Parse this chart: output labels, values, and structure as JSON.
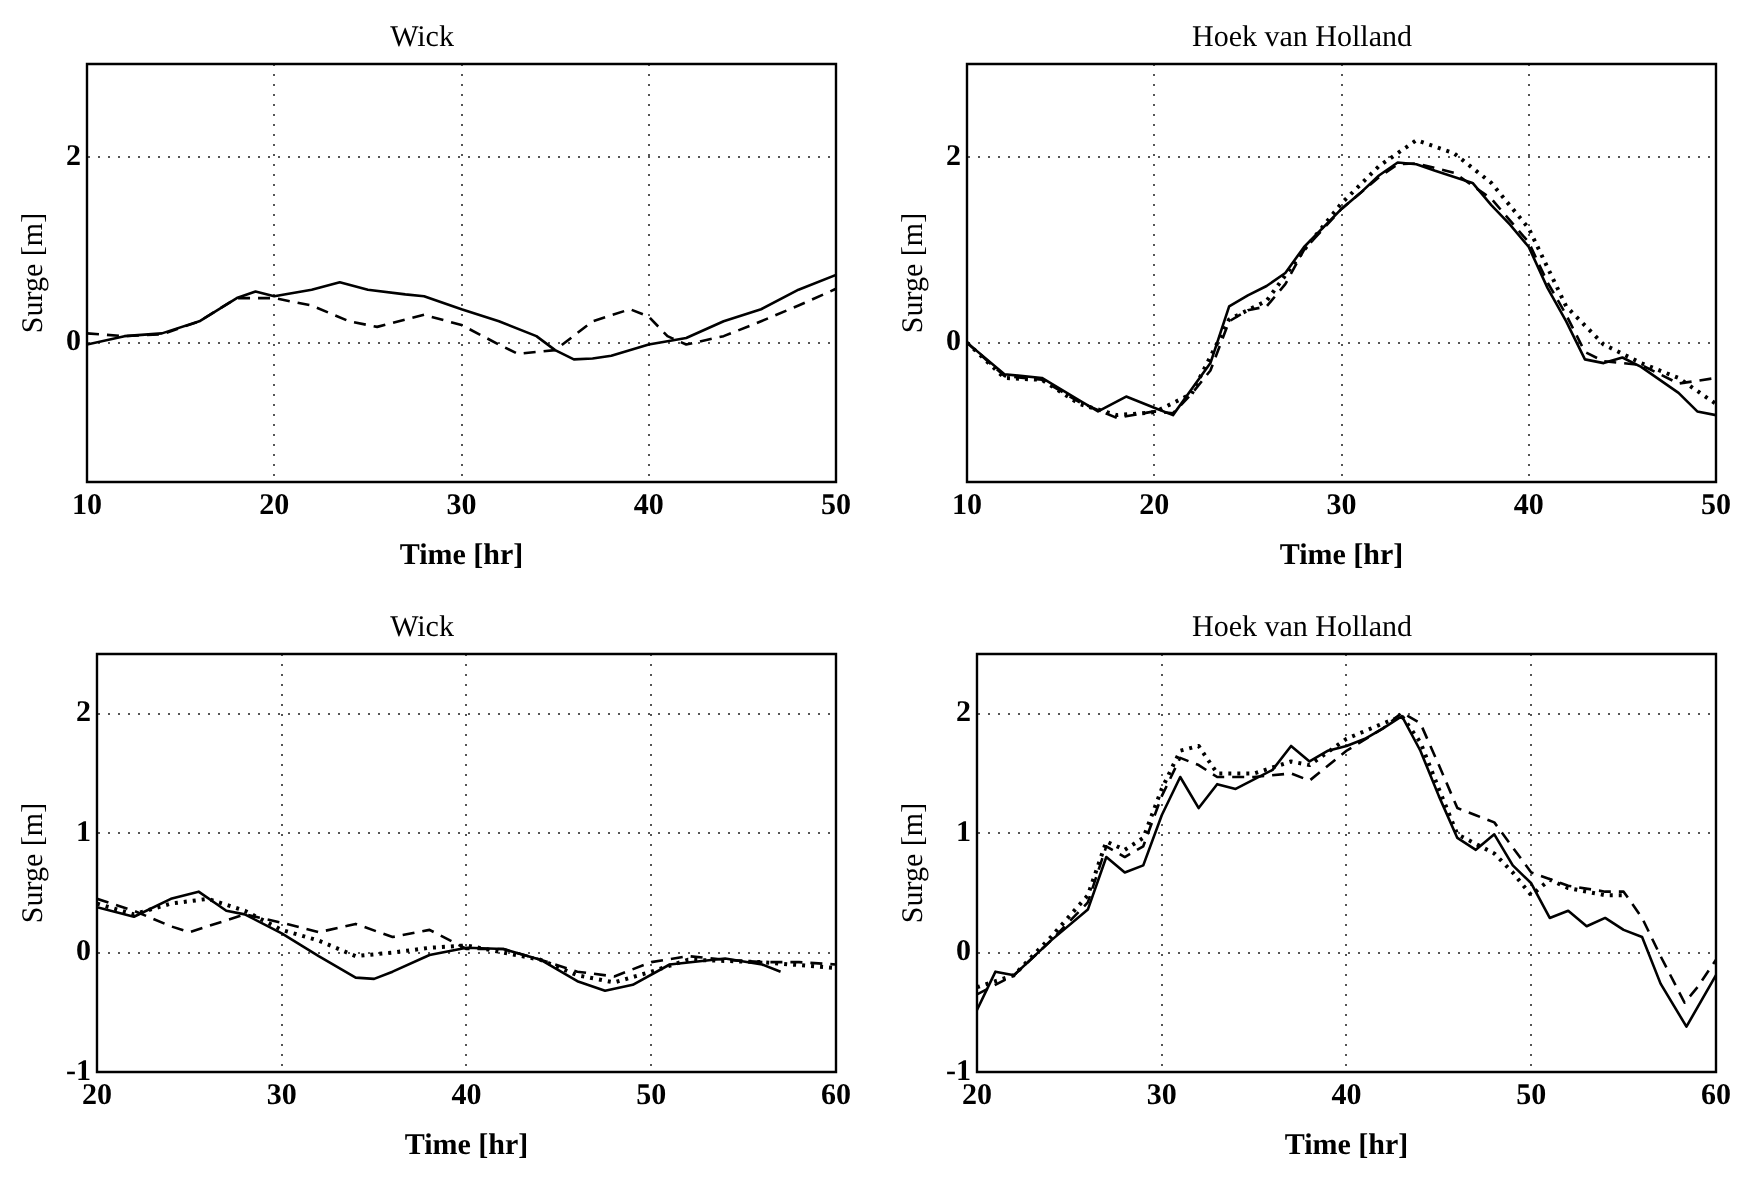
{
  "chart_data": [
    {
      "type": "line",
      "title": "Wick",
      "xlabel": "Time [hr]",
      "ylabel": "Surge [m]",
      "xlim": [
        10,
        50
      ],
      "xticks": [
        10,
        20,
        30,
        40,
        50
      ],
      "ylim": [
        -1.5,
        3
      ],
      "yticks": [
        0,
        2
      ],
      "grid": true,
      "series": [
        {
          "color": "#000000",
          "line_style": "solid",
          "x": [
            10,
            12,
            14,
            16,
            18,
            19,
            20,
            22,
            23.5,
            25,
            27,
            28,
            30,
            32,
            34,
            35,
            36,
            37,
            38,
            40,
            42,
            44,
            46,
            48,
            50
          ],
          "values": [
            -0.02,
            0.07,
            0.1,
            0.23,
            0.48,
            0.55,
            0.5,
            0.57,
            0.65,
            0.57,
            0.52,
            0.5,
            0.36,
            0.23,
            0.07,
            -0.08,
            -0.18,
            -0.17,
            -0.14,
            -0.02,
            0.05,
            0.23,
            0.36,
            0.57,
            0.73
          ]
        },
        {
          "color": "#000000",
          "line_style": "dashed",
          "x": [
            10,
            12,
            14,
            16,
            18,
            20,
            22,
            24,
            25.5,
            28,
            30,
            32,
            33,
            35,
            37,
            39,
            40,
            41,
            42,
            44,
            46,
            48,
            50
          ],
          "values": [
            0.1,
            0.07,
            0.09,
            0.23,
            0.48,
            0.48,
            0.4,
            0.23,
            0.17,
            0.3,
            0.19,
            -0.02,
            -0.12,
            -0.08,
            0.23,
            0.36,
            0.28,
            0.07,
            -0.02,
            0.07,
            0.23,
            0.4,
            0.58
          ]
        }
      ]
    },
    {
      "type": "line",
      "title": "Hoek van Holland",
      "xlabel": "Time [hr]",
      "ylabel": "Surge [m]",
      "xlim": [
        10,
        50
      ],
      "xticks": [
        10,
        20,
        30,
        40,
        50
      ],
      "ylim": [
        -1.5,
        3
      ],
      "yticks": [
        0,
        2
      ],
      "grid": true,
      "series": [
        {
          "color": "#000000",
          "line_style": "solid",
          "x": [
            10,
            12,
            14,
            16,
            17,
            18.5,
            20,
            21,
            22,
            23,
            24,
            25,
            26,
            27,
            28,
            30,
            31,
            32,
            33,
            34,
            35,
            37,
            38,
            39,
            40,
            41,
            42,
            43,
            44,
            45,
            46,
            48,
            49,
            50
          ],
          "values": [
            0,
            -0.34,
            -0.38,
            -0.62,
            -0.74,
            -0.58,
            -0.7,
            -0.78,
            -0.5,
            -0.22,
            0.39,
            0.51,
            0.61,
            0.75,
            1.03,
            1.44,
            1.61,
            1.8,
            1.94,
            1.92,
            1.85,
            1.72,
            1.48,
            1.27,
            1.03,
            0.59,
            0.23,
            -0.18,
            -0.22,
            -0.16,
            -0.26,
            -0.54,
            -0.74,
            -0.78
          ]
        },
        {
          "color": "#000000",
          "line_style": "dashed",
          "x": [
            10,
            12,
            14,
            16,
            18,
            20,
            21,
            22,
            23,
            24,
            25,
            26,
            27,
            28,
            30,
            32,
            33,
            34,
            36,
            38,
            40,
            41,
            42,
            43,
            44,
            46,
            48,
            50
          ],
          "values": [
            0,
            -0.36,
            -0.4,
            -0.64,
            -0.81,
            -0.74,
            -0.76,
            -0.55,
            -0.3,
            0.23,
            0.35,
            0.39,
            0.63,
            1.0,
            1.44,
            1.78,
            1.92,
            1.93,
            1.83,
            1.55,
            1.08,
            0.65,
            0.3,
            -0.1,
            -0.2,
            -0.24,
            -0.44,
            -0.38
          ]
        },
        {
          "color": "#000000",
          "line_style": "dotted",
          "x": [
            10,
            12,
            14,
            16,
            18,
            20,
            22,
            24,
            26,
            28,
            30,
            32,
            34,
            36,
            38,
            40,
            42,
            44,
            46,
            48,
            50
          ],
          "values": [
            0,
            -0.38,
            -0.4,
            -0.66,
            -0.78,
            -0.75,
            -0.55,
            0.25,
            0.45,
            1.0,
            1.5,
            1.9,
            2.18,
            2.04,
            1.72,
            1.23,
            0.39,
            -0.02,
            -0.22,
            -0.38,
            -0.66
          ]
        }
      ]
    },
    {
      "type": "line",
      "title": "Wick",
      "xlabel": "Time [hr]",
      "ylabel": "Surge [m]",
      "xlim": [
        20,
        60
      ],
      "xticks": [
        20,
        30,
        40,
        50,
        60
      ],
      "ylim": [
        -1,
        2.5
      ],
      "yticks": [
        -1,
        0,
        1,
        2
      ],
      "grid": true,
      "series": [
        {
          "color": "#000000",
          "line_style": "solid",
          "x": [
            20,
            22,
            24,
            25.5,
            27,
            28,
            30,
            32,
            34,
            35,
            36,
            38,
            40,
            42,
            44,
            46,
            47.5,
            49,
            51,
            54,
            56,
            57
          ],
          "values": [
            0.38,
            0.3,
            0.45,
            0.51,
            0.35,
            0.32,
            0.16,
            -0.03,
            -0.21,
            -0.22,
            -0.16,
            -0.02,
            0.04,
            0.03,
            -0.06,
            -0.24,
            -0.32,
            -0.27,
            -0.1,
            -0.05,
            -0.1,
            -0.16
          ]
        },
        {
          "color": "#000000",
          "line_style": "dashed",
          "x": [
            20,
            22,
            24,
            25,
            26,
            28,
            30,
            32,
            34,
            36,
            38,
            40,
            42,
            44,
            46,
            48,
            50,
            52,
            54,
            56,
            58,
            60
          ],
          "values": [
            0.45,
            0.35,
            0.22,
            0.17,
            0.22,
            0.32,
            0.25,
            0.17,
            0.24,
            0.13,
            0.19,
            0.03,
            0.03,
            -0.06,
            -0.16,
            -0.2,
            -0.08,
            -0.03,
            -0.06,
            -0.08,
            -0.08,
            -0.1
          ]
        },
        {
          "color": "#000000",
          "line_style": "dotted",
          "x": [
            20,
            22,
            24,
            26,
            28,
            30,
            32,
            34,
            36,
            38,
            40,
            44,
            46,
            48,
            50,
            52,
            56,
            60
          ],
          "values": [
            0.41,
            0.32,
            0.41,
            0.45,
            0.35,
            0.19,
            0.1,
            -0.03,
            0,
            0.04,
            0.06,
            -0.06,
            -0.19,
            -0.25,
            -0.16,
            -0.06,
            -0.08,
            -0.13
          ]
        }
      ]
    },
    {
      "type": "line",
      "title": "Hoek van Holland",
      "xlabel": "Time [hr]",
      "ylabel": "Surge [m]",
      "xlim": [
        20,
        60
      ],
      "xticks": [
        20,
        30,
        40,
        50,
        60
      ],
      "ylim": [
        -1,
        2.5
      ],
      "yticks": [
        -1,
        0,
        1,
        2
      ],
      "grid": true,
      "series": [
        {
          "color": "#000000",
          "line_style": "solid",
          "x": [
            20,
            21,
            22,
            24,
            26,
            27,
            28,
            29,
            30,
            31,
            32,
            33,
            34,
            36,
            37,
            38,
            39,
            40,
            41,
            42,
            43,
            44,
            45,
            46,
            47,
            48,
            49,
            50,
            51,
            52,
            53,
            54,
            55,
            56,
            57,
            58.4,
            60
          ],
          "values": [
            -0.48,
            -0.16,
            -0.19,
            0.1,
            0.36,
            0.8,
            0.67,
            0.73,
            1.15,
            1.47,
            1.21,
            1.41,
            1.37,
            1.53,
            1.73,
            1.6,
            1.69,
            1.73,
            1.79,
            1.88,
            1.98,
            1.69,
            1.31,
            0.96,
            0.86,
            0.99,
            0.73,
            0.58,
            0.29,
            0.35,
            0.22,
            0.29,
            0.19,
            0.13,
            -0.26,
            -0.62,
            -0.19
          ]
        },
        {
          "color": "#000000",
          "line_style": "dashed",
          "x": [
            20,
            22,
            24,
            26,
            27,
            28,
            29,
            30,
            31,
            32,
            33,
            35,
            37,
            38,
            40,
            42,
            43,
            44,
            45,
            46,
            47,
            48,
            50,
            52,
            54,
            55,
            56,
            57,
            58.3,
            59,
            60
          ],
          "values": [
            -0.35,
            -0.19,
            0.1,
            0.42,
            0.89,
            0.8,
            0.89,
            1.31,
            1.63,
            1.57,
            1.47,
            1.47,
            1.5,
            1.44,
            1.69,
            1.88,
            2.01,
            1.92,
            1.57,
            1.21,
            1.15,
            1.09,
            0.67,
            0.56,
            0.51,
            0.51,
            0.29,
            -0.03,
            -0.42,
            -0.29,
            -0.06
          ]
        },
        {
          "color": "#000000",
          "line_style": "dotted",
          "x": [
            20,
            22,
            24,
            26,
            27,
            28,
            29,
            30,
            31,
            32,
            33,
            35,
            37,
            38,
            40,
            42,
            43,
            44,
            45,
            46,
            48,
            49,
            50,
            51,
            52,
            54,
            55
          ],
          "values": [
            -0.29,
            -0.19,
            0.13,
            0.48,
            0.93,
            0.86,
            0.96,
            1.37,
            1.69,
            1.73,
            1.5,
            1.5,
            1.6,
            1.57,
            1.79,
            1.92,
            1.98,
            1.76,
            1.37,
            0.99,
            0.83,
            0.67,
            0.48,
            0.61,
            0.54,
            0.48,
            0.48
          ]
        }
      ]
    }
  ]
}
